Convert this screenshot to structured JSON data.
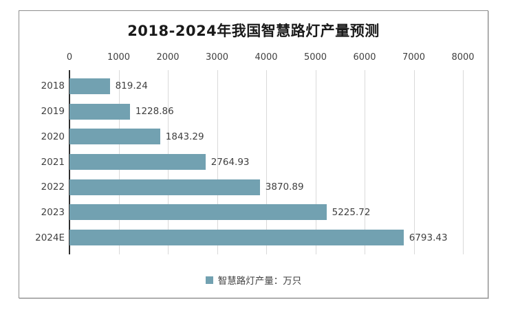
{
  "title": "2018-2024年我国智慧路灯产量预测",
  "colors": {
    "bar": "#72a1b1",
    "grid": "#d9d9d9",
    "axis": "#2f2f2f",
    "frame_border": "#8d8d8d"
  },
  "legend": {
    "label": "智慧路灯产量：万只"
  },
  "chart_data": {
    "type": "bar",
    "orientation": "horizontal",
    "title": "2018-2024年我国智慧路灯产量预测",
    "categories": [
      "2018",
      "2019",
      "2020",
      "2021",
      "2022",
      "2023",
      "2024E"
    ],
    "values": [
      819.24,
      1228.86,
      1843.29,
      2764.93,
      3870.89,
      5225.72,
      6793.43
    ],
    "data_labels": [
      "819.24",
      "1228.86",
      "1843.29",
      "2764.93",
      "3870.89",
      "5225.72",
      "6793.43"
    ],
    "xlabel": "",
    "ylabel": "",
    "xlim": [
      0,
      8000
    ],
    "xticks": [
      0,
      1000,
      2000,
      3000,
      4000,
      5000,
      6000,
      7000,
      8000
    ],
    "grid": true,
    "legend": [
      "智慧路灯产量：万只"
    ],
    "legend_position": "bottom"
  }
}
